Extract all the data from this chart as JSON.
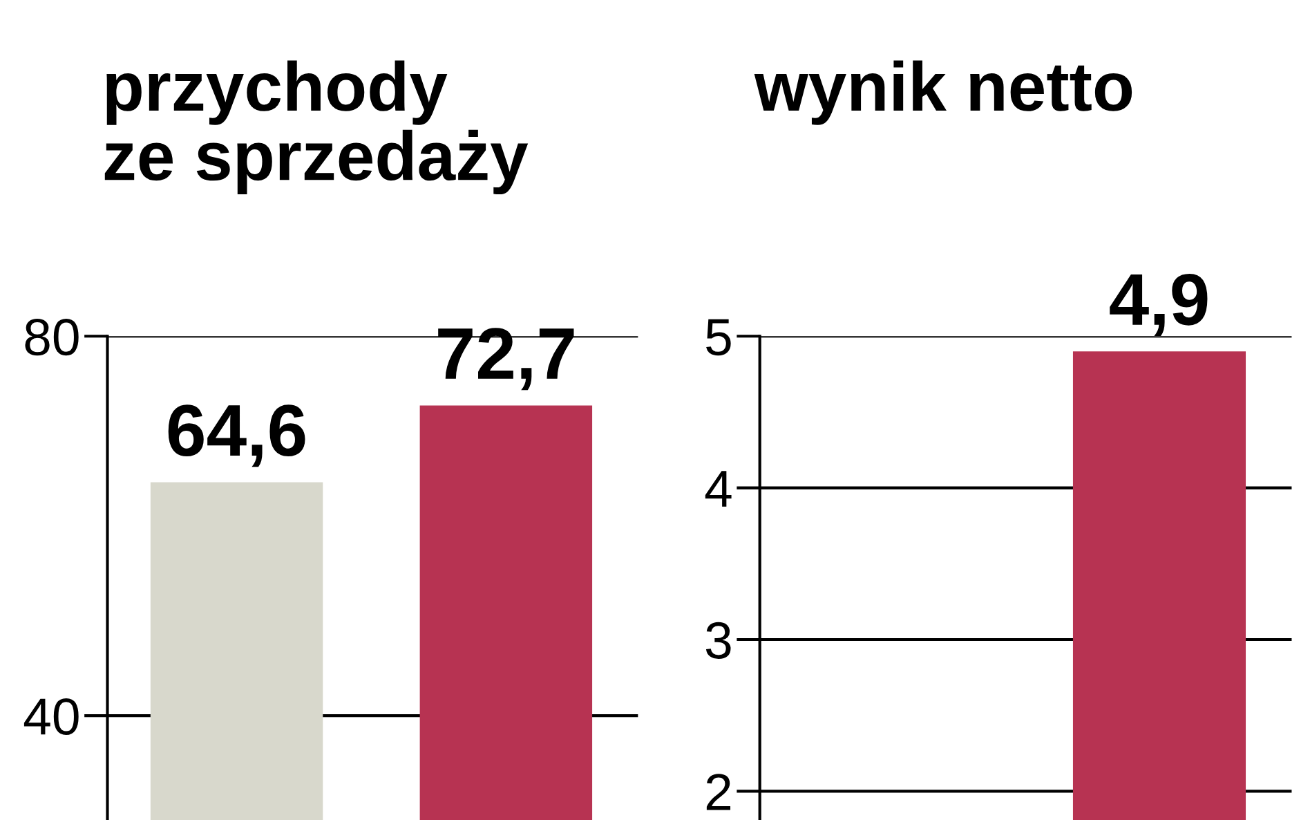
{
  "chart_data": [
    {
      "type": "bar",
      "title": "przychody\nze sprzedaży",
      "categories": [
        null,
        null
      ],
      "values": [
        64.6,
        72.7
      ],
      "colors": [
        "#d8d8cc",
        "#b73352"
      ],
      "value_labels": [
        "64,6",
        "72,7"
      ],
      "ylim": [
        29,
        80
      ],
      "yticks": [
        40,
        80
      ],
      "grid": "y"
    },
    {
      "type": "bar",
      "title": "wynik netto",
      "categories": [
        null,
        null
      ],
      "values": [
        null,
        4.9
      ],
      "colors": [
        "#d8d8cc",
        "#b73352"
      ],
      "value_labels": [
        null,
        "4,9"
      ],
      "ylim": [
        1.81,
        5
      ],
      "yticks": [
        2,
        3,
        4,
        5
      ],
      "grid": "y"
    }
  ]
}
